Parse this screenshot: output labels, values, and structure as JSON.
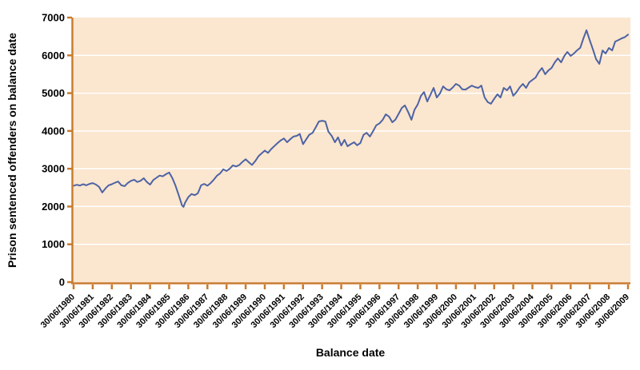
{
  "chart_data": {
    "type": "line",
    "title": "",
    "xlabel": "Balance date",
    "ylabel": "Prison sentenced offenders on balance date",
    "legend": "none",
    "grid": "horizontal-white-on-peach",
    "x_axis": {
      "min": 1980.5,
      "max": 2009.5,
      "tick_labels": [
        "30/06/1980",
        "30/06/1981",
        "30/06/1982",
        "30/06/1983",
        "30/06/1984",
        "30/06/1985",
        "30/06/1986",
        "30/06/1987",
        "30/06/1988",
        "30/06/1989",
        "30/06/1990",
        "30/06/1991",
        "30/06/1992",
        "30/06/1993",
        "30/06/1994",
        "30/06/1995",
        "30/06/1996",
        "30/06/1997",
        "30/06/1998",
        "30/06/1999",
        "30/06/2000",
        "30/06/2001",
        "30/06/2002",
        "30/06/2003",
        "30/06/2004",
        "30/06/2005",
        "30/06/2006",
        "30/06/2007",
        "30/06/2008",
        "30/06/2009"
      ]
    },
    "y_axis": {
      "min": 0,
      "max": 7000,
      "tick_values": [
        0,
        1000,
        2000,
        3000,
        4000,
        5000,
        6000,
        7000
      ],
      "tick_labels": [
        "0",
        "1000",
        "2000",
        "3000",
        "4000",
        "5000",
        "6000",
        "7000"
      ]
    },
    "series": [
      {
        "points": [
          [
            1980.5,
            2550
          ],
          [
            1980.67,
            2575
          ],
          [
            1980.83,
            2555
          ],
          [
            1981,
            2590
          ],
          [
            1981.17,
            2560
          ],
          [
            1981.33,
            2600
          ],
          [
            1981.5,
            2620
          ],
          [
            1981.67,
            2580
          ],
          [
            1981.83,
            2520
          ],
          [
            1982,
            2370
          ],
          [
            1982.17,
            2480
          ],
          [
            1982.33,
            2560
          ],
          [
            1982.5,
            2590
          ],
          [
            1982.67,
            2630
          ],
          [
            1982.83,
            2660
          ],
          [
            1983,
            2560
          ],
          [
            1983.17,
            2540
          ],
          [
            1983.33,
            2620
          ],
          [
            1983.5,
            2680
          ],
          [
            1983.67,
            2710
          ],
          [
            1983.83,
            2650
          ],
          [
            1984,
            2680
          ],
          [
            1984.17,
            2750
          ],
          [
            1984.33,
            2650
          ],
          [
            1984.5,
            2580
          ],
          [
            1984.67,
            2700
          ],
          [
            1984.83,
            2760
          ],
          [
            1985,
            2820
          ],
          [
            1985.17,
            2800
          ],
          [
            1985.33,
            2855
          ],
          [
            1985.5,
            2900
          ],
          [
            1985.67,
            2750
          ],
          [
            1985.83,
            2550
          ],
          [
            1986,
            2300
          ],
          [
            1986.17,
            2030
          ],
          [
            1986.25,
            1990
          ],
          [
            1986.33,
            2100
          ],
          [
            1986.5,
            2250
          ],
          [
            1986.67,
            2330
          ],
          [
            1986.83,
            2300
          ],
          [
            1987,
            2350
          ],
          [
            1987.17,
            2560
          ],
          [
            1987.33,
            2600
          ],
          [
            1987.5,
            2550
          ],
          [
            1987.67,
            2620
          ],
          [
            1987.83,
            2710
          ],
          [
            1988,
            2815
          ],
          [
            1988.17,
            2880
          ],
          [
            1988.33,
            2985
          ],
          [
            1988.5,
            2940
          ],
          [
            1988.67,
            3000
          ],
          [
            1988.83,
            3090
          ],
          [
            1989,
            3060
          ],
          [
            1989.17,
            3100
          ],
          [
            1989.33,
            3180
          ],
          [
            1989.5,
            3250
          ],
          [
            1989.67,
            3170
          ],
          [
            1989.83,
            3100
          ],
          [
            1990,
            3200
          ],
          [
            1990.17,
            3330
          ],
          [
            1990.33,
            3405
          ],
          [
            1990.5,
            3480
          ],
          [
            1990.67,
            3420
          ],
          [
            1990.83,
            3520
          ],
          [
            1991,
            3600
          ],
          [
            1991.17,
            3680
          ],
          [
            1991.33,
            3750
          ],
          [
            1991.5,
            3800
          ],
          [
            1991.67,
            3700
          ],
          [
            1991.83,
            3780
          ],
          [
            1992,
            3850
          ],
          [
            1992.17,
            3870
          ],
          [
            1992.33,
            3920
          ],
          [
            1992.5,
            3650
          ],
          [
            1992.67,
            3780
          ],
          [
            1992.83,
            3900
          ],
          [
            1993,
            3950
          ],
          [
            1993.17,
            4100
          ],
          [
            1993.33,
            4250
          ],
          [
            1993.5,
            4270
          ],
          [
            1993.67,
            4250
          ],
          [
            1993.83,
            3980
          ],
          [
            1994,
            3870
          ],
          [
            1994.17,
            3700
          ],
          [
            1994.33,
            3830
          ],
          [
            1994.5,
            3615
          ],
          [
            1994.67,
            3765
          ],
          [
            1994.83,
            3595
          ],
          [
            1995,
            3650
          ],
          [
            1995.17,
            3700
          ],
          [
            1995.33,
            3620
          ],
          [
            1995.5,
            3680
          ],
          [
            1995.67,
            3900
          ],
          [
            1995.83,
            3950
          ],
          [
            1996,
            3850
          ],
          [
            1996.17,
            4000
          ],
          [
            1996.33,
            4150
          ],
          [
            1996.5,
            4200
          ],
          [
            1996.67,
            4295
          ],
          [
            1996.83,
            4440
          ],
          [
            1997,
            4380
          ],
          [
            1997.17,
            4230
          ],
          [
            1997.33,
            4300
          ],
          [
            1997.5,
            4450
          ],
          [
            1997.67,
            4610
          ],
          [
            1997.83,
            4675
          ],
          [
            1998,
            4500
          ],
          [
            1998.17,
            4295
          ],
          [
            1998.33,
            4560
          ],
          [
            1998.5,
            4700
          ],
          [
            1998.67,
            4930
          ],
          [
            1998.83,
            5030
          ],
          [
            1999,
            4780
          ],
          [
            1999.17,
            4960
          ],
          [
            1999.33,
            5140
          ],
          [
            1999.5,
            4885
          ],
          [
            1999.67,
            5000
          ],
          [
            1999.83,
            5180
          ],
          [
            2000,
            5100
          ],
          [
            2000.17,
            5075
          ],
          [
            2000.33,
            5150
          ],
          [
            2000.5,
            5245
          ],
          [
            2000.67,
            5200
          ],
          [
            2000.83,
            5100
          ],
          [
            2001,
            5095
          ],
          [
            2001.17,
            5150
          ],
          [
            2001.33,
            5200
          ],
          [
            2001.5,
            5160
          ],
          [
            2001.67,
            5140
          ],
          [
            2001.83,
            5200
          ],
          [
            2002,
            4885
          ],
          [
            2002.17,
            4760
          ],
          [
            2002.33,
            4720
          ],
          [
            2002.5,
            4850
          ],
          [
            2002.67,
            4970
          ],
          [
            2002.83,
            4885
          ],
          [
            2003,
            5140
          ],
          [
            2003.17,
            5075
          ],
          [
            2003.33,
            5180
          ],
          [
            2003.5,
            4930
          ],
          [
            2003.67,
            5030
          ],
          [
            2003.83,
            5150
          ],
          [
            2004,
            5245
          ],
          [
            2004.17,
            5140
          ],
          [
            2004.33,
            5285
          ],
          [
            2004.5,
            5350
          ],
          [
            2004.67,
            5415
          ],
          [
            2004.83,
            5560
          ],
          [
            2005,
            5665
          ],
          [
            2005.17,
            5500
          ],
          [
            2005.33,
            5600
          ],
          [
            2005.5,
            5665
          ],
          [
            2005.67,
            5815
          ],
          [
            2005.83,
            5920
          ],
          [
            2006,
            5815
          ],
          [
            2006.17,
            5985
          ],
          [
            2006.33,
            6090
          ],
          [
            2006.5,
            5985
          ],
          [
            2006.67,
            6050
          ],
          [
            2006.83,
            6130
          ],
          [
            2007,
            6200
          ],
          [
            2007.17,
            6450
          ],
          [
            2007.33,
            6665
          ],
          [
            2007.5,
            6400
          ],
          [
            2007.67,
            6150
          ],
          [
            2007.83,
            5900
          ],
          [
            2008,
            5775
          ],
          [
            2008.17,
            6130
          ],
          [
            2008.33,
            6050
          ],
          [
            2008.5,
            6195
          ],
          [
            2008.67,
            6130
          ],
          [
            2008.83,
            6365
          ],
          [
            2009,
            6405
          ],
          [
            2009.17,
            6450
          ],
          [
            2009.33,
            6480
          ],
          [
            2009.5,
            6550
          ]
        ]
      }
    ],
    "colors": {
      "line": "#4D63A4",
      "plot_background": "#FBE6CF",
      "axis": "#C97B2E",
      "gridline": "#FFFFFF",
      "text": "#000000",
      "page_background": "#FFFFFF"
    }
  }
}
